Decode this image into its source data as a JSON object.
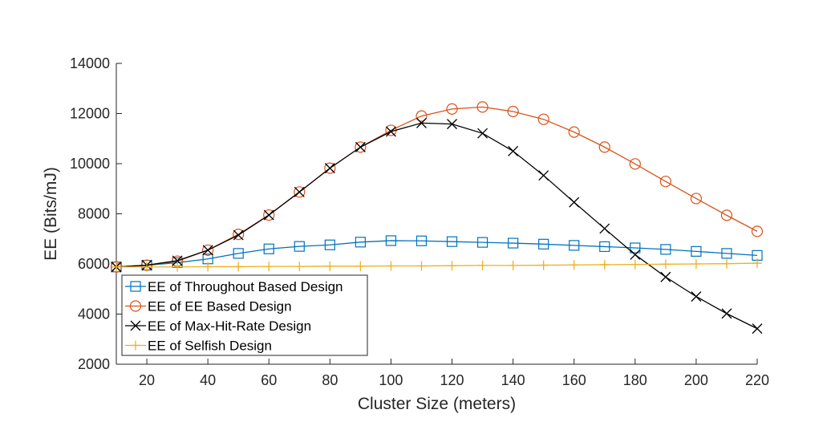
{
  "chart_data": {
    "type": "line",
    "title": "",
    "xlabel": "Cluster Size (meters)",
    "ylabel": "EE (Bits/mJ)",
    "xlim": [
      10,
      220
    ],
    "ylim": [
      2000,
      14000
    ],
    "xticks": [
      20,
      40,
      60,
      80,
      100,
      120,
      140,
      160,
      180,
      200,
      220
    ],
    "yticks": [
      2000,
      4000,
      6000,
      8000,
      10000,
      12000,
      14000
    ],
    "grid": false,
    "legend_position": "bottom-left",
    "x": [
      10,
      20,
      30,
      40,
      50,
      60,
      70,
      80,
      90,
      100,
      110,
      120,
      130,
      140,
      150,
      160,
      170,
      180,
      190,
      200,
      210,
      220
    ],
    "series": [
      {
        "name": "EE of Throughout Based Design",
        "color": "#0072BD",
        "marker": "square",
        "values": [
          5880,
          5950,
          6050,
          6200,
          6420,
          6600,
          6700,
          6760,
          6870,
          6930,
          6920,
          6890,
          6860,
          6830,
          6790,
          6740,
          6690,
          6640,
          6580,
          6500,
          6420,
          6340
        ]
      },
      {
        "name": "EE of EE Based Design",
        "color": "#D95319",
        "marker": "circle",
        "values": [
          5880,
          5950,
          6110,
          6550,
          7180,
          7950,
          8870,
          9820,
          10660,
          11330,
          11900,
          12180,
          12260,
          12080,
          11770,
          11260,
          10660,
          9990,
          9290,
          8610,
          7940,
          7300
        ]
      },
      {
        "name": "EE of Max-Hit-Rate Design",
        "color": "#000000",
        "marker": "x",
        "values": [
          5880,
          5950,
          6130,
          6550,
          7150,
          7950,
          8870,
          9820,
          10660,
          11280,
          11620,
          11580,
          11210,
          10500,
          9530,
          8460,
          7410,
          6370,
          5480,
          4700,
          4020,
          3420
        ]
      },
      {
        "name": "EE of Selfish Design",
        "color": "#EDB120",
        "marker": "plus",
        "values": [
          5880,
          5880,
          5880,
          5890,
          5890,
          5900,
          5900,
          5910,
          5910,
          5920,
          5920,
          5930,
          5940,
          5940,
          5950,
          5960,
          5970,
          5980,
          5990,
          6000,
          6010,
          6030
        ]
      }
    ]
  }
}
